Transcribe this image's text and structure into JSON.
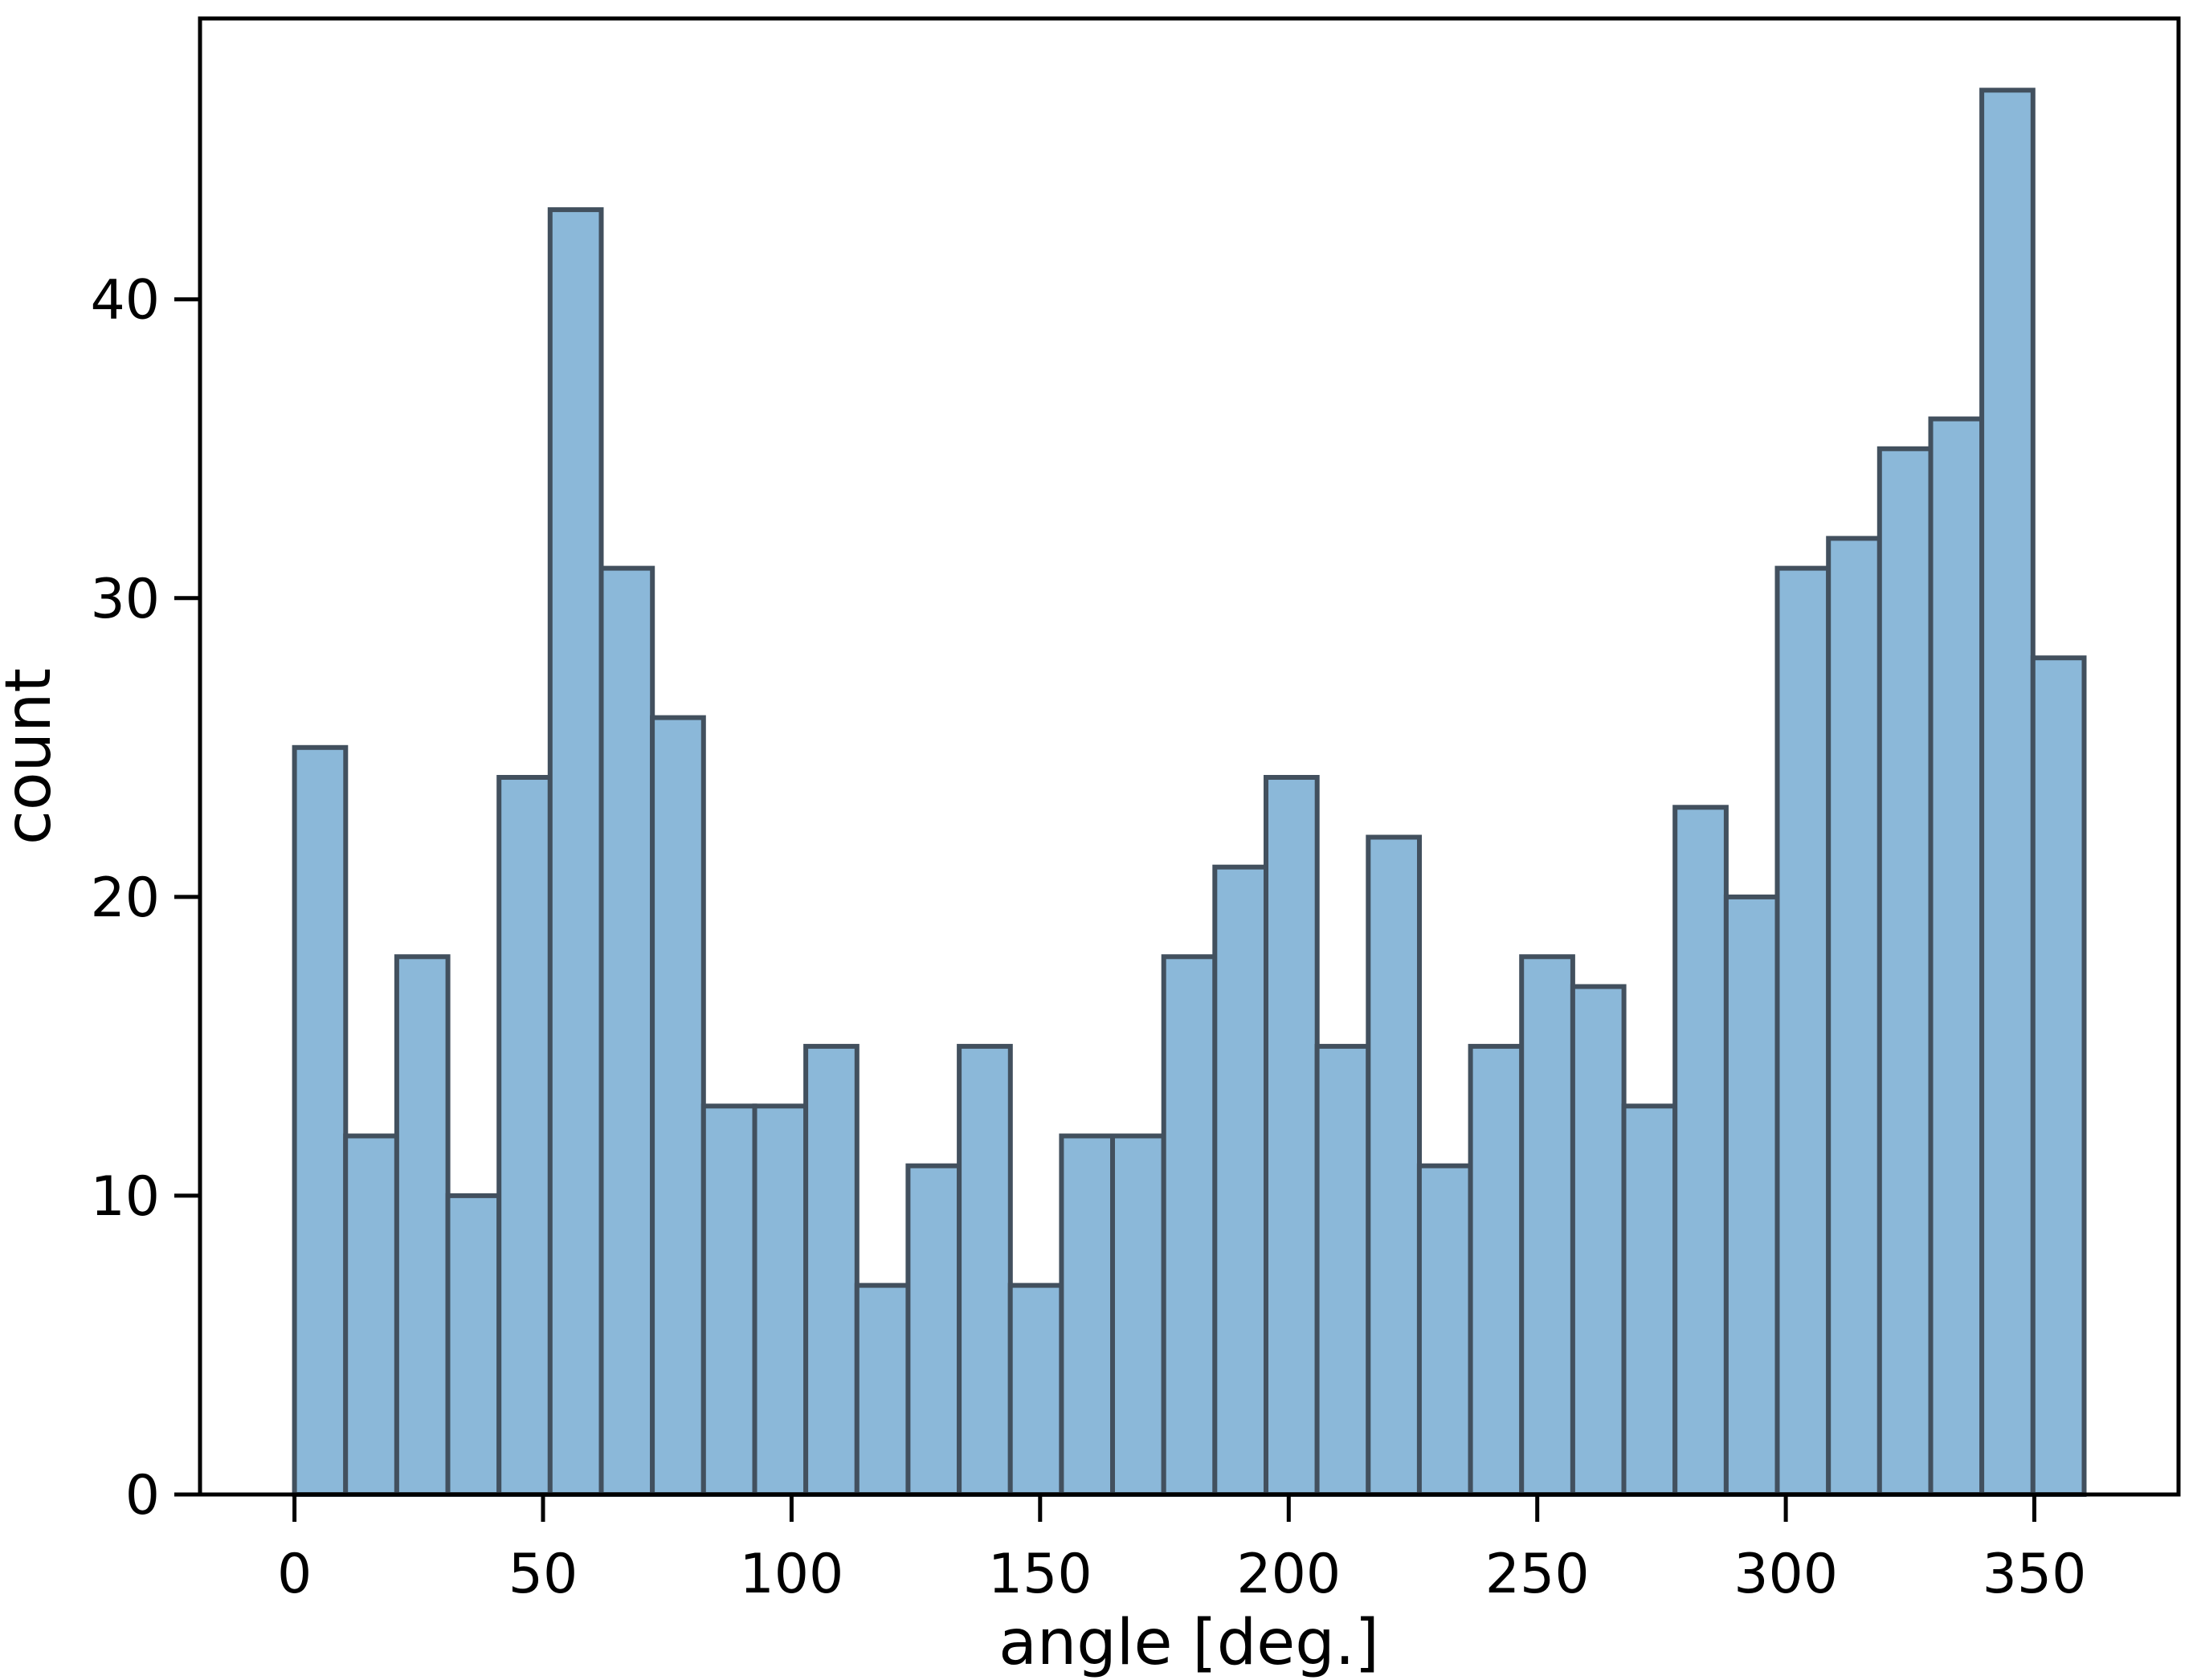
{
  "chart_data": {
    "type": "bar",
    "subtype": "histogram",
    "title": "",
    "xlabel": "angle [deg.]",
    "ylabel": "count",
    "bin_range": [
      0,
      360
    ],
    "n_bins": 35,
    "values": [
      25,
      12,
      18,
      10,
      24,
      43,
      31,
      26,
      13,
      13,
      15,
      7,
      11,
      15,
      7,
      12,
      12,
      18,
      21,
      24,
      15,
      22,
      11,
      15,
      18,
      17,
      13,
      23,
      20,
      31,
      32,
      35,
      36,
      47,
      28
    ],
    "total_count": 720,
    "x_ticks": [
      0,
      50,
      100,
      150,
      200,
      250,
      300,
      350
    ],
    "x_tick_labels": [
      "0",
      "50",
      "100",
      "150",
      "200",
      "250",
      "300",
      "350"
    ],
    "y_ticks": [
      0,
      10,
      20,
      30,
      40
    ],
    "y_tick_labels": [
      "0",
      "10",
      "20",
      "30",
      "40"
    ],
    "xlim": [
      -19,
      379
    ],
    "ylim": [
      0,
      49.4
    ],
    "grid": false,
    "legend": null,
    "colors": {
      "bar_fill": "#8bb8d9",
      "bar_edge": "#42505e",
      "spine": "#000000",
      "tick": "#000000",
      "text": "#000000",
      "background": "#ffffff"
    }
  }
}
